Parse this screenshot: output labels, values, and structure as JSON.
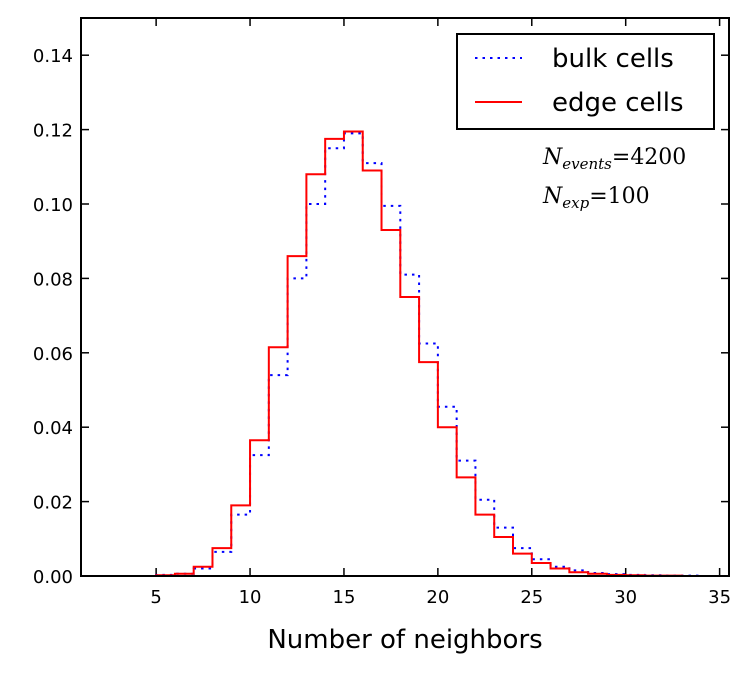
{
  "chart_data": {
    "type": "line",
    "title": "",
    "xlabel": "Number of neighbors",
    "ylabel": "",
    "xlim": [
      1,
      35.5
    ],
    "ylim": [
      0,
      0.15
    ],
    "xticks": [
      5,
      10,
      15,
      20,
      25,
      30,
      35
    ],
    "xtick_labels": [
      "5",
      "10",
      "15",
      "20",
      "25",
      "30",
      "35"
    ],
    "yticks": [
      0.0,
      0.02,
      0.04,
      0.06,
      0.08,
      0.1,
      0.12,
      0.14
    ],
    "ytick_labels": [
      "0.00",
      "0.02",
      "0.04",
      "0.06",
      "0.08",
      "0.10",
      "0.12",
      "0.14"
    ],
    "legend_position": "top-right",
    "series": [
      {
        "name": "bulk cells",
        "color": "#0000ff",
        "style": "dotted",
        "bin_edges": [
          1,
          2,
          3,
          4,
          5,
          6,
          7,
          8,
          9,
          10,
          11,
          12,
          13,
          14,
          15,
          16,
          17,
          18,
          19,
          20,
          21,
          22,
          23,
          24,
          25,
          26,
          27,
          28,
          29,
          30,
          31,
          32,
          33,
          34,
          35
        ],
        "values": [
          0.0,
          0.0,
          0.0,
          0.0,
          0.0003,
          0.0006,
          0.002,
          0.0065,
          0.0165,
          0.0325,
          0.054,
          0.08,
          0.1,
          0.115,
          0.119,
          0.111,
          0.0995,
          0.081,
          0.0625,
          0.0455,
          0.031,
          0.0205,
          0.013,
          0.0075,
          0.0045,
          0.0025,
          0.0015,
          0.0008,
          0.0005,
          0.0003,
          0.0002,
          0.0001,
          0.0001,
          0.0
        ]
      },
      {
        "name": "edge cells",
        "color": "#ff0000",
        "style": "solid",
        "bin_edges": [
          1,
          2,
          3,
          4,
          5,
          6,
          7,
          8,
          9,
          10,
          11,
          12,
          13,
          14,
          15,
          16,
          17,
          18,
          19,
          20,
          21,
          22,
          23,
          24,
          25,
          26,
          27,
          28,
          29,
          30,
          31,
          32,
          33,
          34,
          35
        ],
        "values": [
          0.0,
          0.0,
          0.0,
          0.0,
          0.0002,
          0.0006,
          0.0025,
          0.0075,
          0.019,
          0.0365,
          0.0615,
          0.086,
          0.108,
          0.1175,
          0.1195,
          0.109,
          0.093,
          0.075,
          0.0575,
          0.04,
          0.0265,
          0.0165,
          0.0105,
          0.006,
          0.0035,
          0.002,
          0.001,
          0.0006,
          0.0003,
          0.0002,
          0.0001,
          0.0001,
          0.0,
          0.0
        ]
      }
    ],
    "annotations": [
      {
        "symbol": "N",
        "subscript": "events",
        "value": "4200"
      },
      {
        "symbol": "N",
        "subscript": "exp",
        "value": "100"
      }
    ]
  }
}
